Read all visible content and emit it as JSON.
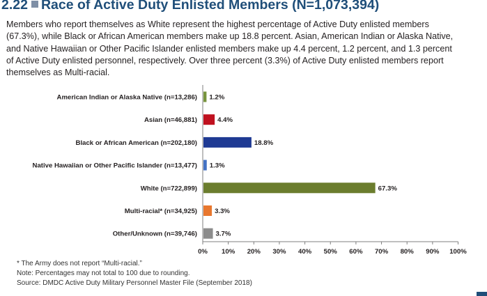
{
  "title": {
    "number": "2.22",
    "text": "Race of Active Duty Enlisted Members (N=1,073,394)"
  },
  "intro": "Members who report themselves as White represent the highest percentage of Active Duty enlisted members (67.3%), while Black or African American members make up 18.8 percent. Asian, American Indian or Alaska Native, and Native Hawaiian or Other Pacific Islander enlisted members make up 4.4 percent, 1.2 percent, and 1.3 percent of Active Duty enlisted personnel, respectively. Over three percent (3.3%) of Active Duty enlisted members report themselves as Multi-racial.",
  "chart_data": {
    "type": "bar",
    "orientation": "horizontal",
    "title": "Race of Active Duty Enlisted Members (N=1,073,394)",
    "xlabel": "",
    "ylabel": "",
    "xlim": [
      0,
      100
    ],
    "ticks": [
      0,
      10,
      20,
      30,
      40,
      50,
      60,
      70,
      80,
      90,
      100
    ],
    "tick_labels": [
      "0%",
      "10%",
      "20%",
      "30%",
      "40%",
      "50%",
      "60%",
      "70%",
      "80%",
      "90%",
      "100%"
    ],
    "grid": false,
    "categories": [
      "American Indian or Alaska Native (n=13,286)",
      "Asian (n=46,881)",
      "Black or African American (n=202,180)",
      "Native Hawaiian or Other Pacific Islander (n=13,477)",
      "White (n=722,899)",
      "Multi-racial* (n=34,925)",
      "Other/Unknown (n=39,746)"
    ],
    "values": [
      1.2,
      4.4,
      18.8,
      1.3,
      67.3,
      3.3,
      3.7
    ],
    "value_labels": [
      "1.2%",
      "4.4%",
      "18.8%",
      "1.3%",
      "67.3%",
      "3.3%",
      "3.7%"
    ],
    "colors": [
      "#77933c",
      "#c0111f",
      "#1f3a93",
      "#4472c4",
      "#6b7d2e",
      "#e8772e",
      "#8c8c8c"
    ]
  },
  "footnotes": {
    "asterisk": "* The Army does not report “Multi-racial.”",
    "note": "Note: Percentages may not total to 100 due to rounding.",
    "source": "Source: DMDC Active Duty Military Personnel Master File (September 2018)"
  }
}
